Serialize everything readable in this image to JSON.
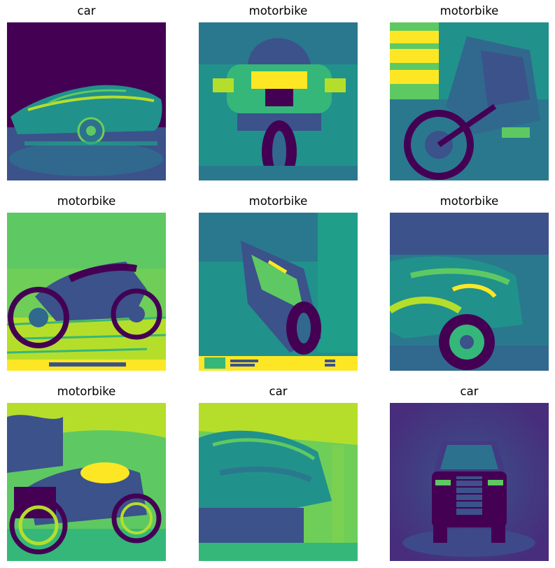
{
  "figure": {
    "panels": [
      {
        "label": "car"
      },
      {
        "label": "motorbike"
      },
      {
        "label": "motorbike"
      },
      {
        "label": "motorbike"
      },
      {
        "label": "motorbike"
      },
      {
        "label": "motorbike"
      },
      {
        "label": "motorbike"
      },
      {
        "label": "car"
      },
      {
        "label": "car"
      }
    ]
  },
  "colors": {
    "dark": "#440154",
    "blue_purple": "#3b528b",
    "teal": "#21918c",
    "green": "#5ec962",
    "yellow": "#fde725"
  }
}
